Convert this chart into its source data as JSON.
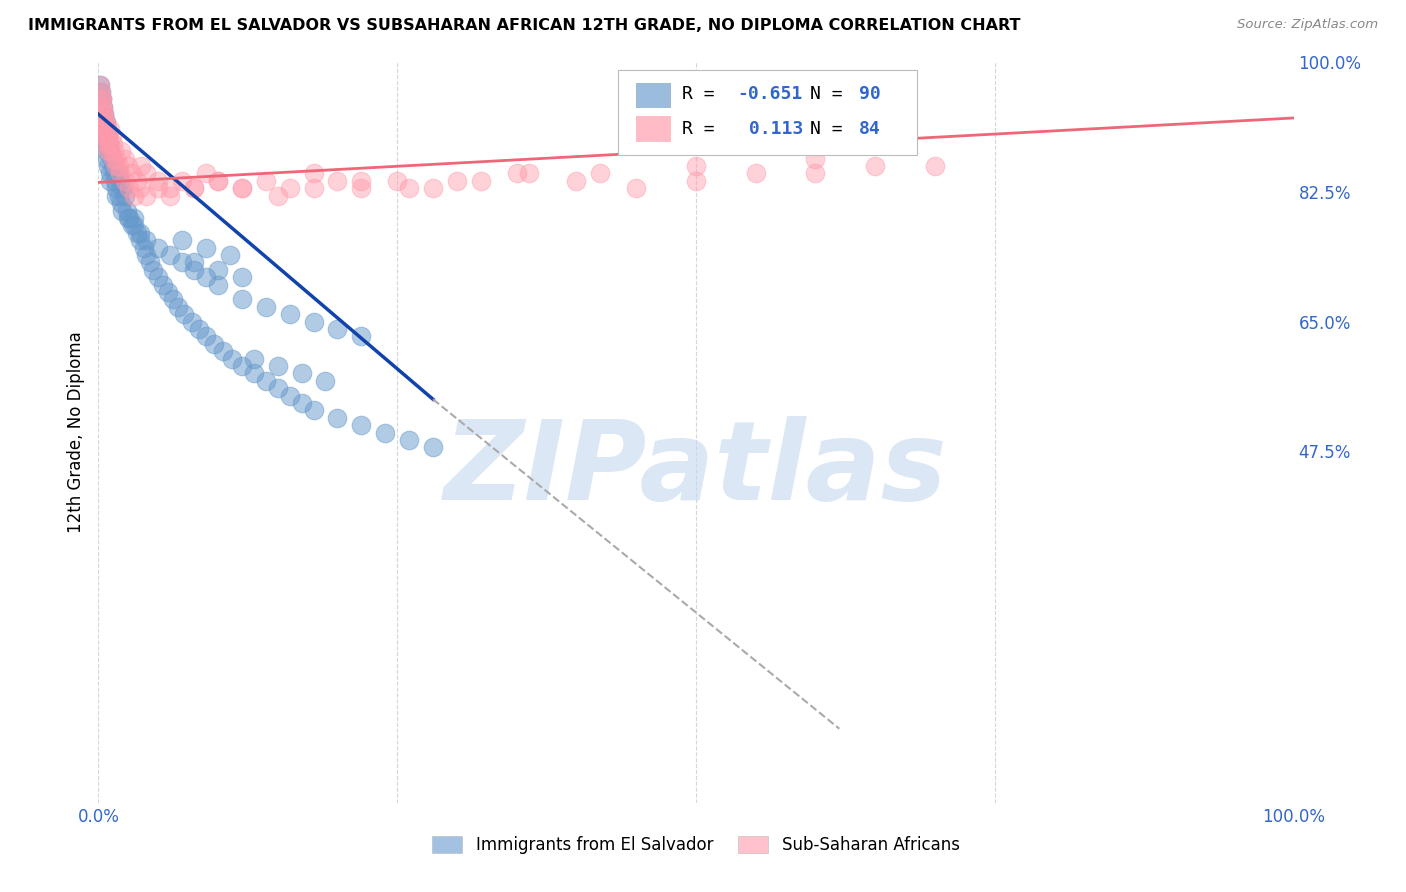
{
  "title": "IMMIGRANTS FROM EL SALVADOR VS SUBSAHARAN AFRICAN 12TH GRADE, NO DIPLOMA CORRELATION CHART",
  "source": "Source: ZipAtlas.com",
  "ylabel": "12th Grade, No Diploma",
  "xlim": [
    0.0,
    1.0
  ],
  "ylim": [
    0.0,
    1.0
  ],
  "ytick_positions": [
    1.0,
    0.825,
    0.65,
    0.475
  ],
  "ytick_labels": [
    "100.0%",
    "82.5%",
    "65.0%",
    "47.5%"
  ],
  "blue_color": "#6699cc",
  "pink_color": "#ff99aa",
  "blue_R": -0.651,
  "blue_N": 90,
  "pink_R": 0.113,
  "pink_N": 84,
  "blue_line_color": "#1144aa",
  "pink_line_color": "#ee6677",
  "dashed_line_color": "#aaaaaa",
  "watermark_text": "ZIPatlas",
  "watermark_color": "#c5d8f0",
  "legend_label_blue": "Immigrants from El Salvador",
  "legend_label_pink": "Sub-Saharan Africans",
  "blue_scatter_x": [
    0.001,
    0.002,
    0.002,
    0.003,
    0.003,
    0.004,
    0.004,
    0.005,
    0.005,
    0.006,
    0.006,
    0.007,
    0.007,
    0.008,
    0.008,
    0.009,
    0.01,
    0.01,
    0.011,
    0.012,
    0.013,
    0.014,
    0.015,
    0.016,
    0.017,
    0.018,
    0.019,
    0.02,
    0.022,
    0.024,
    0.026,
    0.028,
    0.03,
    0.032,
    0.035,
    0.038,
    0.04,
    0.043,
    0.046,
    0.05,
    0.054,
    0.058,
    0.062,
    0.067,
    0.072,
    0.078,
    0.084,
    0.09,
    0.097,
    0.104,
    0.112,
    0.12,
    0.13,
    0.14,
    0.15,
    0.16,
    0.17,
    0.18,
    0.2,
    0.22,
    0.24,
    0.26,
    0.28,
    0.01,
    0.015,
    0.02,
    0.025,
    0.03,
    0.035,
    0.04,
    0.05,
    0.06,
    0.07,
    0.08,
    0.09,
    0.1,
    0.12,
    0.14,
    0.16,
    0.18,
    0.2,
    0.22,
    0.13,
    0.15,
    0.17,
    0.19,
    0.08,
    0.1,
    0.12,
    0.07,
    0.09,
    0.11
  ],
  "blue_scatter_y": [
    0.97,
    0.96,
    0.93,
    0.95,
    0.91,
    0.94,
    0.9,
    0.93,
    0.89,
    0.92,
    0.88,
    0.91,
    0.87,
    0.9,
    0.86,
    0.89,
    0.88,
    0.85,
    0.87,
    0.86,
    0.85,
    0.84,
    0.83,
    0.85,
    0.82,
    0.84,
    0.81,
    0.83,
    0.82,
    0.8,
    0.79,
    0.78,
    0.79,
    0.77,
    0.76,
    0.75,
    0.74,
    0.73,
    0.72,
    0.71,
    0.7,
    0.69,
    0.68,
    0.67,
    0.66,
    0.65,
    0.64,
    0.63,
    0.62,
    0.61,
    0.6,
    0.59,
    0.58,
    0.57,
    0.56,
    0.55,
    0.54,
    0.53,
    0.52,
    0.51,
    0.5,
    0.49,
    0.48,
    0.84,
    0.82,
    0.8,
    0.79,
    0.78,
    0.77,
    0.76,
    0.75,
    0.74,
    0.73,
    0.72,
    0.71,
    0.7,
    0.68,
    0.67,
    0.66,
    0.65,
    0.64,
    0.63,
    0.6,
    0.59,
    0.58,
    0.57,
    0.73,
    0.72,
    0.71,
    0.76,
    0.75,
    0.74
  ],
  "pink_scatter_x": [
    0.001,
    0.002,
    0.002,
    0.003,
    0.003,
    0.004,
    0.004,
    0.005,
    0.005,
    0.006,
    0.006,
    0.007,
    0.008,
    0.008,
    0.009,
    0.01,
    0.011,
    0.012,
    0.013,
    0.015,
    0.017,
    0.019,
    0.022,
    0.025,
    0.028,
    0.032,
    0.036,
    0.04,
    0.05,
    0.06,
    0.07,
    0.08,
    0.09,
    0.1,
    0.12,
    0.14,
    0.16,
    0.18,
    0.2,
    0.22,
    0.25,
    0.28,
    0.32,
    0.36,
    0.4,
    0.45,
    0.5,
    0.55,
    0.6,
    0.65,
    0.7,
    0.003,
    0.004,
    0.005,
    0.006,
    0.007,
    0.008,
    0.01,
    0.012,
    0.015,
    0.018,
    0.022,
    0.026,
    0.03,
    0.035,
    0.04,
    0.05,
    0.06,
    0.08,
    0.1,
    0.12,
    0.15,
    0.18,
    0.22,
    0.26,
    0.3,
    0.35,
    0.42,
    0.5,
    0.6,
    0.002,
    0.003,
    0.005,
    0.007
  ],
  "pink_scatter_y": [
    0.97,
    0.96,
    0.93,
    0.95,
    0.92,
    0.94,
    0.91,
    0.93,
    0.9,
    0.92,
    0.89,
    0.91,
    0.9,
    0.88,
    0.89,
    0.91,
    0.9,
    0.89,
    0.88,
    0.87,
    0.86,
    0.88,
    0.87,
    0.86,
    0.85,
    0.84,
    0.86,
    0.85,
    0.84,
    0.83,
    0.84,
    0.83,
    0.85,
    0.84,
    0.83,
    0.84,
    0.83,
    0.85,
    0.84,
    0.83,
    0.84,
    0.83,
    0.84,
    0.85,
    0.84,
    0.83,
    0.84,
    0.85,
    0.85,
    0.86,
    0.86,
    0.95,
    0.93,
    0.92,
    0.91,
    0.9,
    0.89,
    0.88,
    0.87,
    0.86,
    0.85,
    0.84,
    0.83,
    0.82,
    0.83,
    0.82,
    0.83,
    0.82,
    0.83,
    0.84,
    0.83,
    0.82,
    0.83,
    0.84,
    0.83,
    0.84,
    0.85,
    0.85,
    0.86,
    0.87,
    0.94,
    0.92,
    0.91,
    0.9
  ],
  "blue_trend_x": [
    0.0,
    0.28
  ],
  "blue_trend_y": [
    0.93,
    0.545
  ],
  "dashed_trend_x": [
    0.28,
    0.62
  ],
  "dashed_trend_y": [
    0.545,
    0.1
  ],
  "pink_trend_x": [
    0.0,
    1.0
  ],
  "pink_trend_y": [
    0.838,
    0.925
  ]
}
